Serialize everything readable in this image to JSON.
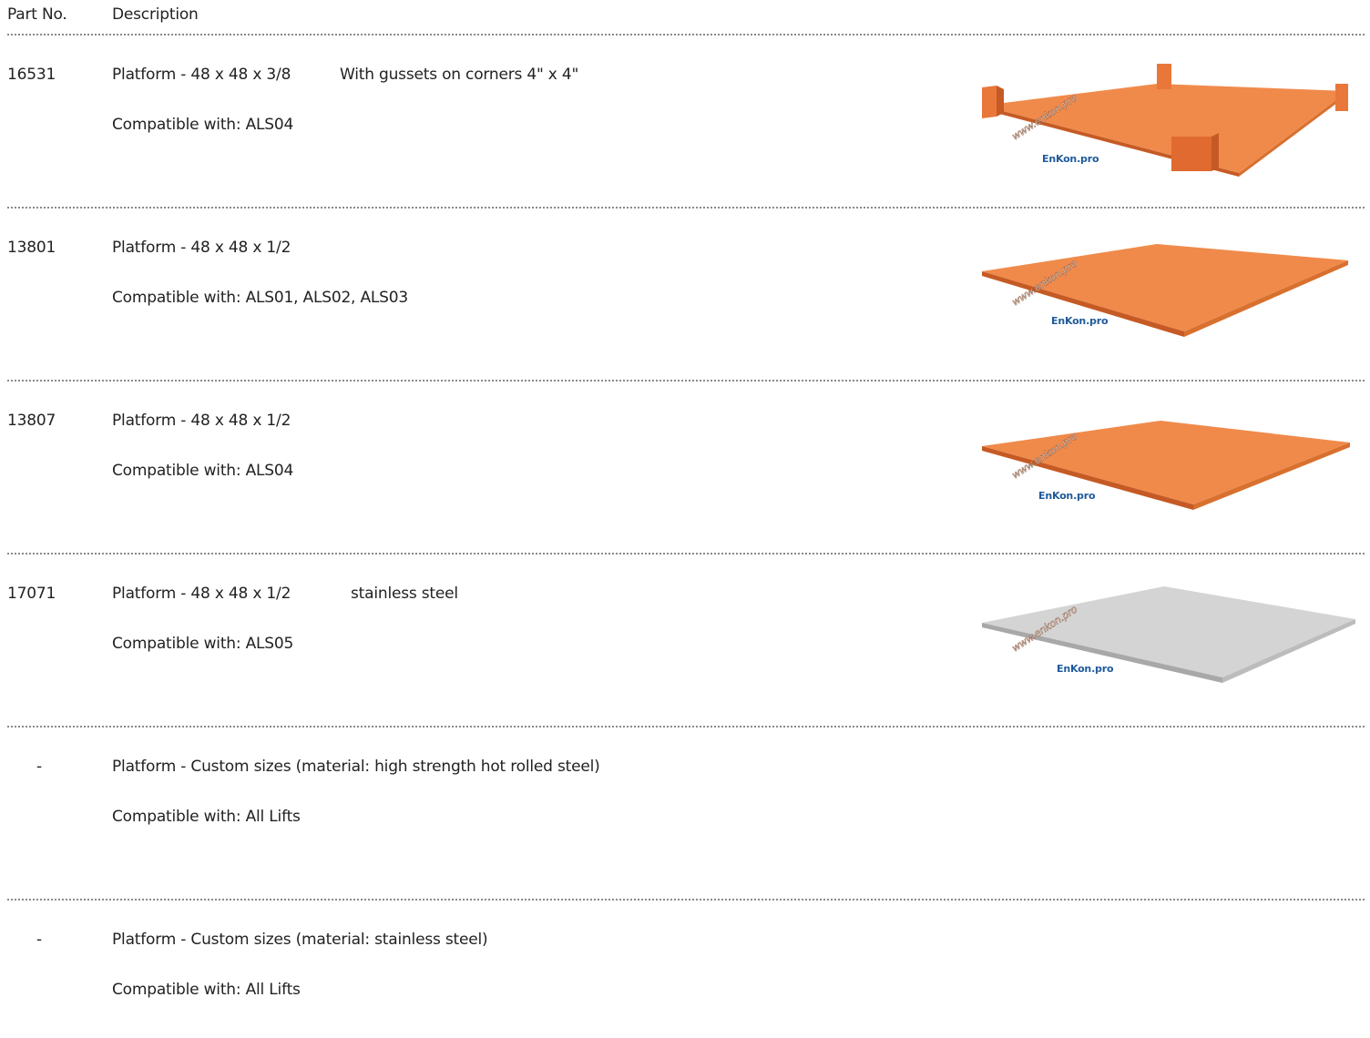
{
  "header": {
    "part_no": "Part No.",
    "description": "Description"
  },
  "rows": [
    {
      "part": "16531",
      "desc": "Platform - 48 x 48 x 3/8",
      "note": "With gussets on corners 4\" x 4\"",
      "compat": "Compatible with: ALS04",
      "image": "orange-platform-with-gussets",
      "watermark": "www.enkon.pro",
      "logo": "EnKon.pro"
    },
    {
      "part": "13801",
      "desc": "Platform - 48 x 48 x 1/2",
      "note": "",
      "compat": "Compatible with: ALS01, ALS02, ALS03",
      "image": "orange-platform",
      "watermark": "www.enkon.pro",
      "logo": "EnKon.pro"
    },
    {
      "part": "13807",
      "desc": "Platform - 48 x 48 x 1/2",
      "note": "",
      "compat": "Compatible with: ALS04",
      "image": "orange-platform",
      "watermark": "www.enkon.pro",
      "logo": "EnKon.pro"
    },
    {
      "part": "17071",
      "desc": "Platform - 48 x 48 x 1/2",
      "note": "stainless steel",
      "compat": "Compatible with: ALS05",
      "image": "stainless-platform",
      "watermark": "www.enkon.pro",
      "logo": "EnKon.pro"
    },
    {
      "part": "-",
      "desc": "Platform - Custom sizes (material: high strength hot rolled steel)",
      "note": "",
      "compat": "Compatible with: All Lifts"
    },
    {
      "part": "-",
      "desc": "Platform - Custom sizes (material: stainless steel)",
      "note": "",
      "compat": "Compatible with: All Lifts"
    }
  ],
  "colors": {
    "orange": "#f08a4b",
    "orange_edge": "#c55a24",
    "steel": "#d4d4d4",
    "steel_edge": "#a8a8a8",
    "logo_blue": "#1f5a9b",
    "separator": "#8a8a8a"
  }
}
